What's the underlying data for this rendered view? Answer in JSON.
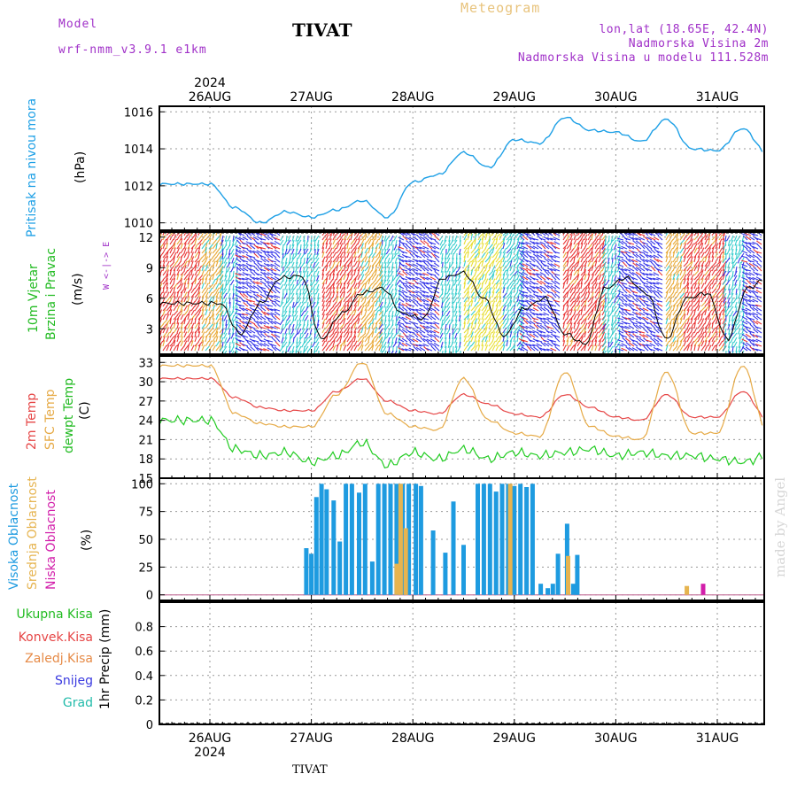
{
  "header": {
    "model_label": "Model",
    "model_name": "wrf-nmm_v3.9.1 e1km",
    "station_title": "TIVAT",
    "meteogram_label": "Meteogram",
    "lonlat": "lon,lat (18.65E, 42.4N)",
    "elevation": "Nadmorska Visina 2m",
    "model_elevation": "Nadmorska Visina u modelu 111.528m"
  },
  "axis_top": {
    "year": "2024",
    "dates": [
      "26AUG",
      "27AUG",
      "28AUG",
      "29AUG",
      "30AUG",
      "31AUG"
    ]
  },
  "axis_bottom": {
    "year": "2024",
    "dates": [
      "26AUG",
      "27AUG",
      "28AUG",
      "29AUG",
      "30AUG",
      "31AUG"
    ]
  },
  "footer": {
    "station": "TIVAT"
  },
  "watermark": "made by Angel",
  "panel_labels": {
    "pressure": {
      "name": "Pritisak na nivou mora",
      "unit": "(hPa)"
    },
    "wind": {
      "line1": "10m Vjetar",
      "line2": "Brzina i Pravac",
      "unit": "(m/s)",
      "compass": "W <-|-> E"
    },
    "temp": {
      "t2m": "2m Temp",
      "sfc": "SFC Temp",
      "dew": "dewpt Temp",
      "unit": "(C)"
    },
    "cloud": {
      "high": "Visoka Oblacnost",
      "mid": "Srednja Oblacnost",
      "low": "Niska Oblacnost",
      "unit": "(%)"
    },
    "precip": {
      "total": "Ukupna Kisa",
      "conv": "Konvek.Kisa",
      "frz": "Zaledj.Kisa",
      "snow": "Snijeg",
      "grad": "Grad",
      "unit": "1hr Precip (mm)"
    }
  },
  "colors": {
    "pressure": "#1ea0e6",
    "t2m": "#e64646",
    "sfc": "#e6aa46",
    "dew": "#22cc22",
    "high": "#1e9be0",
    "mid": "#e6b450",
    "low": "#d21eaa"
  },
  "chart_data": [
    {
      "type": "line",
      "ylabel": "(hPa)",
      "ylim": [
        1009.6,
        1016.3
      ],
      "yticks": [
        "1010",
        "1012",
        "1014",
        "1016"
      ],
      "x_days": [
        0,
        0.25,
        0.5,
        0.75,
        1,
        1.25,
        1.5,
        1.75,
        2,
        2.25,
        2.5,
        2.75,
        3,
        3.25,
        3.5,
        3.75,
        4,
        4.25,
        4.5,
        4.75,
        5,
        5.25,
        5.5,
        5.75,
        6
      ],
      "series": [
        {
          "values": [
            1012.1,
            1010.8,
            1010.0,
            1010.6,
            1010.3,
            1010.7,
            1011.2,
            1010.3,
            1012.2,
            1012.6,
            1013.8,
            1013.0,
            1014.5,
            1014.3,
            1015.7,
            1015.0,
            1014.9,
            1014.4,
            1015.6,
            1014.0,
            1013.9,
            1015.1,
            1013.7,
            1014.1,
            1013.8
          ]
        }
      ]
    },
    {
      "type": "line",
      "ylabel": "(m/s)",
      "ylim": [
        0.5,
        12.5
      ],
      "yticks": [
        "3",
        "6",
        "9",
        "12"
      ],
      "x_days": [
        0.1,
        0.3,
        0.5,
        0.7,
        0.9,
        1.1,
        1.3,
        1.5,
        1.7,
        1.9,
        2.1,
        2.3,
        2.5,
        2.7,
        2.9,
        3.1,
        3.3,
        3.5,
        3.7,
        3.9,
        4.1,
        4.3,
        4.5,
        4.7,
        4.9,
        5.1,
        5.3,
        5.5,
        5.7,
        5.9
      ],
      "series": [
        {
          "values": [
            5.5,
            2.5,
            5.5,
            8.0,
            8.2,
            2.0,
            4.5,
            6.5,
            7.0,
            4.5,
            4.0,
            8.0,
            8.5,
            6.0,
            2.3,
            5.0,
            6.0,
            2.5,
            1.5,
            7.0,
            8.0,
            6.5,
            2.0,
            6.0,
            6.5,
            2.0,
            7.0,
            8.0,
            6.0,
            2.5
          ]
        }
      ]
    },
    {
      "type": "line",
      "ylabel": "(C)",
      "ylim": [
        15,
        34
      ],
      "yticks": [
        "15",
        "18",
        "21",
        "24",
        "27",
        "30",
        "33"
      ],
      "x_days": [
        0,
        0.25,
        0.5,
        0.75,
        1,
        1.25,
        1.5,
        1.75,
        2,
        2.25,
        2.5,
        2.75,
        3,
        3.25,
        3.5,
        3.75,
        4,
        4.25,
        4.5,
        4.75,
        5,
        5.25,
        5.5,
        5.75,
        6
      ],
      "series": [
        {
          "name": "2m Temp",
          "values": [
            30.5,
            27.5,
            26.0,
            25.5,
            25.5,
            28.5,
            30.5,
            27.0,
            25.5,
            25.0,
            28.0,
            26.5,
            25.0,
            24.5,
            28.0,
            26.0,
            24.5,
            24.0,
            28.0,
            24.5,
            24.5,
            28.5,
            24.0,
            24.0,
            29.0
          ]
        },
        {
          "name": "SFC Temp",
          "values": [
            32.5,
            25.0,
            23.5,
            23.0,
            23.0,
            28.0,
            33.0,
            25.0,
            23.0,
            22.5,
            30.5,
            24.0,
            22.0,
            21.5,
            31.5,
            23.0,
            21.5,
            21.0,
            31.5,
            22.0,
            22.0,
            32.5,
            22.0,
            21.5,
            32.5
          ]
        },
        {
          "name": "dewpt Temp",
          "values": [
            24.0,
            19.5,
            18.5,
            19.0,
            17.5,
            18.5,
            20.5,
            17.0,
            19.0,
            18.0,
            19.5,
            18.0,
            19.0,
            18.5,
            19.0,
            19.5,
            18.5,
            19.0,
            18.5,
            18.5,
            18.0,
            17.5,
            18.5,
            17.5,
            21.0
          ]
        }
      ]
    },
    {
      "type": "bar",
      "ylabel": "(%)",
      "ylim": [
        -5,
        105
      ],
      "yticks": [
        "0",
        "25",
        "50",
        "75",
        "100"
      ],
      "series": [
        {
          "name": "Visoka Oblacnost",
          "bars": [
            [
              0.95,
              42
            ],
            [
              1.0,
              37
            ],
            [
              1.05,
              88
            ],
            [
              1.1,
              100
            ],
            [
              1.15,
              95
            ],
            [
              1.22,
              85
            ],
            [
              1.28,
              48
            ],
            [
              1.34,
              100
            ],
            [
              1.4,
              100
            ],
            [
              1.47,
              92
            ],
            [
              1.53,
              100
            ],
            [
              1.6,
              30
            ],
            [
              1.66,
              100
            ],
            [
              1.72,
              100
            ],
            [
              1.78,
              100
            ],
            [
              1.84,
              100
            ],
            [
              1.9,
              100
            ],
            [
              1.96,
              100
            ],
            [
              2.03,
              100
            ],
            [
              2.08,
              98
            ],
            [
              2.2,
              58
            ],
            [
              2.32,
              38
            ],
            [
              2.4,
              84
            ],
            [
              2.5,
              45
            ],
            [
              2.64,
              100
            ],
            [
              2.7,
              100
            ],
            [
              2.76,
              100
            ],
            [
              2.82,
              93
            ],
            [
              2.88,
              100
            ],
            [
              2.94,
              100
            ],
            [
              3.0,
              98
            ],
            [
              3.06,
              100
            ],
            [
              3.12,
              97
            ],
            [
              3.18,
              100
            ],
            [
              3.26,
              10
            ],
            [
              3.33,
              6
            ],
            [
              3.38,
              10
            ],
            [
              3.43,
              37
            ],
            [
              3.52,
              64
            ],
            [
              3.58,
              10
            ],
            [
              3.62,
              36
            ]
          ]
        },
        {
          "name": "Srednja Oblacnost",
          "bars": [
            [
              1.84,
              28
            ],
            [
              1.88,
              100
            ],
            [
              1.93,
              60
            ],
            [
              2.96,
              100
            ],
            [
              3.53,
              35
            ],
            [
              4.7,
              8
            ]
          ]
        },
        {
          "name": "Niska Oblacnost",
          "bars": [
            [
              4.86,
              10
            ]
          ]
        }
      ]
    },
    {
      "type": "bar",
      "ylabel": "1hr Precip (mm)",
      "ylim": [
        0,
        1.0
      ],
      "yticks": [
        "0",
        "0.2",
        "0.4",
        "0.6",
        "0.8"
      ],
      "series": [
        {
          "name": "Ukupna Kisa",
          "bars": []
        }
      ]
    }
  ]
}
